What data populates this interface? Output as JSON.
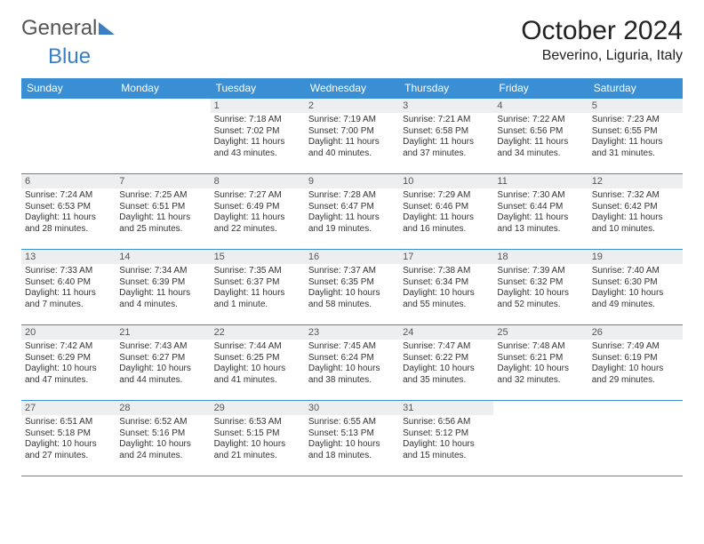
{
  "logo": {
    "part1": "General",
    "part2": "Blue"
  },
  "title": "October 2024",
  "location": "Beverino, Liguria, Italy",
  "colors": {
    "header_bg": "#3a8fd4",
    "header_text": "#ffffff",
    "daynum_bg": "#eceef0",
    "border": "#3a8fd4",
    "logo_blue": "#3a7fc4",
    "logo_gray": "#555555"
  },
  "weekdays": [
    "Sunday",
    "Monday",
    "Tuesday",
    "Wednesday",
    "Thursday",
    "Friday",
    "Saturday"
  ],
  "weeks": [
    [
      {
        "blank": true
      },
      {
        "blank": true
      },
      {
        "num": "1",
        "sunrise": "Sunrise: 7:18 AM",
        "sunset": "Sunset: 7:02 PM",
        "daylight": "Daylight: 11 hours and 43 minutes."
      },
      {
        "num": "2",
        "sunrise": "Sunrise: 7:19 AM",
        "sunset": "Sunset: 7:00 PM",
        "daylight": "Daylight: 11 hours and 40 minutes."
      },
      {
        "num": "3",
        "sunrise": "Sunrise: 7:21 AM",
        "sunset": "Sunset: 6:58 PM",
        "daylight": "Daylight: 11 hours and 37 minutes."
      },
      {
        "num": "4",
        "sunrise": "Sunrise: 7:22 AM",
        "sunset": "Sunset: 6:56 PM",
        "daylight": "Daylight: 11 hours and 34 minutes."
      },
      {
        "num": "5",
        "sunrise": "Sunrise: 7:23 AM",
        "sunset": "Sunset: 6:55 PM",
        "daylight": "Daylight: 11 hours and 31 minutes."
      }
    ],
    [
      {
        "num": "6",
        "sunrise": "Sunrise: 7:24 AM",
        "sunset": "Sunset: 6:53 PM",
        "daylight": "Daylight: 11 hours and 28 minutes."
      },
      {
        "num": "7",
        "sunrise": "Sunrise: 7:25 AM",
        "sunset": "Sunset: 6:51 PM",
        "daylight": "Daylight: 11 hours and 25 minutes."
      },
      {
        "num": "8",
        "sunrise": "Sunrise: 7:27 AM",
        "sunset": "Sunset: 6:49 PM",
        "daylight": "Daylight: 11 hours and 22 minutes."
      },
      {
        "num": "9",
        "sunrise": "Sunrise: 7:28 AM",
        "sunset": "Sunset: 6:47 PM",
        "daylight": "Daylight: 11 hours and 19 minutes."
      },
      {
        "num": "10",
        "sunrise": "Sunrise: 7:29 AM",
        "sunset": "Sunset: 6:46 PM",
        "daylight": "Daylight: 11 hours and 16 minutes."
      },
      {
        "num": "11",
        "sunrise": "Sunrise: 7:30 AM",
        "sunset": "Sunset: 6:44 PM",
        "daylight": "Daylight: 11 hours and 13 minutes."
      },
      {
        "num": "12",
        "sunrise": "Sunrise: 7:32 AM",
        "sunset": "Sunset: 6:42 PM",
        "daylight": "Daylight: 11 hours and 10 minutes."
      }
    ],
    [
      {
        "num": "13",
        "sunrise": "Sunrise: 7:33 AM",
        "sunset": "Sunset: 6:40 PM",
        "daylight": "Daylight: 11 hours and 7 minutes."
      },
      {
        "num": "14",
        "sunrise": "Sunrise: 7:34 AM",
        "sunset": "Sunset: 6:39 PM",
        "daylight": "Daylight: 11 hours and 4 minutes."
      },
      {
        "num": "15",
        "sunrise": "Sunrise: 7:35 AM",
        "sunset": "Sunset: 6:37 PM",
        "daylight": "Daylight: 11 hours and 1 minute."
      },
      {
        "num": "16",
        "sunrise": "Sunrise: 7:37 AM",
        "sunset": "Sunset: 6:35 PM",
        "daylight": "Daylight: 10 hours and 58 minutes."
      },
      {
        "num": "17",
        "sunrise": "Sunrise: 7:38 AM",
        "sunset": "Sunset: 6:34 PM",
        "daylight": "Daylight: 10 hours and 55 minutes."
      },
      {
        "num": "18",
        "sunrise": "Sunrise: 7:39 AM",
        "sunset": "Sunset: 6:32 PM",
        "daylight": "Daylight: 10 hours and 52 minutes."
      },
      {
        "num": "19",
        "sunrise": "Sunrise: 7:40 AM",
        "sunset": "Sunset: 6:30 PM",
        "daylight": "Daylight: 10 hours and 49 minutes."
      }
    ],
    [
      {
        "num": "20",
        "sunrise": "Sunrise: 7:42 AM",
        "sunset": "Sunset: 6:29 PM",
        "daylight": "Daylight: 10 hours and 47 minutes."
      },
      {
        "num": "21",
        "sunrise": "Sunrise: 7:43 AM",
        "sunset": "Sunset: 6:27 PM",
        "daylight": "Daylight: 10 hours and 44 minutes."
      },
      {
        "num": "22",
        "sunrise": "Sunrise: 7:44 AM",
        "sunset": "Sunset: 6:25 PM",
        "daylight": "Daylight: 10 hours and 41 minutes."
      },
      {
        "num": "23",
        "sunrise": "Sunrise: 7:45 AM",
        "sunset": "Sunset: 6:24 PM",
        "daylight": "Daylight: 10 hours and 38 minutes."
      },
      {
        "num": "24",
        "sunrise": "Sunrise: 7:47 AM",
        "sunset": "Sunset: 6:22 PM",
        "daylight": "Daylight: 10 hours and 35 minutes."
      },
      {
        "num": "25",
        "sunrise": "Sunrise: 7:48 AM",
        "sunset": "Sunset: 6:21 PM",
        "daylight": "Daylight: 10 hours and 32 minutes."
      },
      {
        "num": "26",
        "sunrise": "Sunrise: 7:49 AM",
        "sunset": "Sunset: 6:19 PM",
        "daylight": "Daylight: 10 hours and 29 minutes."
      }
    ],
    [
      {
        "num": "27",
        "sunrise": "Sunrise: 6:51 AM",
        "sunset": "Sunset: 5:18 PM",
        "daylight": "Daylight: 10 hours and 27 minutes."
      },
      {
        "num": "28",
        "sunrise": "Sunrise: 6:52 AM",
        "sunset": "Sunset: 5:16 PM",
        "daylight": "Daylight: 10 hours and 24 minutes."
      },
      {
        "num": "29",
        "sunrise": "Sunrise: 6:53 AM",
        "sunset": "Sunset: 5:15 PM",
        "daylight": "Daylight: 10 hours and 21 minutes."
      },
      {
        "num": "30",
        "sunrise": "Sunrise: 6:55 AM",
        "sunset": "Sunset: 5:13 PM",
        "daylight": "Daylight: 10 hours and 18 minutes."
      },
      {
        "num": "31",
        "sunrise": "Sunrise: 6:56 AM",
        "sunset": "Sunset: 5:12 PM",
        "daylight": "Daylight: 10 hours and 15 minutes."
      },
      {
        "blank": true
      },
      {
        "blank": true
      }
    ]
  ]
}
